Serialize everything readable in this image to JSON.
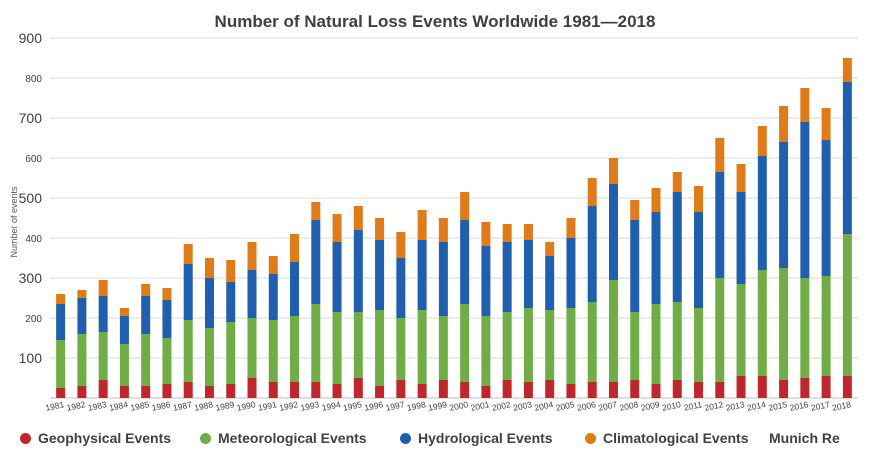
{
  "chart_data": {
    "type": "bar",
    "stacked": true,
    "title": "Number of Natural Loss Events Worldwide 1981—2018",
    "xlabel": "",
    "ylabel": "Number of events",
    "ylim": [
      0,
      900
    ],
    "yticks": [
      {
        "value": 100,
        "label": "100"
      },
      {
        "value": 200,
        "label": "200"
      },
      {
        "value": 300,
        "label": "300"
      },
      {
        "value": 400,
        "label": "400"
      },
      {
        "value": 500,
        "label": "500"
      },
      {
        "value": 600,
        "label": "600"
      },
      {
        "value": 700,
        "label": "700"
      },
      {
        "value": 800,
        "label": "800"
      },
      {
        "value": 900,
        "label": "900"
      }
    ],
    "grid": true,
    "legend_position": "bottom",
    "source": "Munich Re",
    "categories": [
      "1981",
      "1982",
      "1983",
      "1984",
      "1985",
      "1986",
      "1987",
      "1988",
      "1989",
      "1990",
      "1991",
      "1992",
      "1993",
      "1994",
      "1995",
      "1996",
      "1997",
      "1998",
      "1999",
      "2000",
      "2001",
      "2002",
      "2003",
      "2004",
      "2005",
      "2006",
      "2007",
      "2008",
      "2009",
      "2010",
      "2011",
      "2012",
      "2013",
      "2014",
      "2015",
      "2016",
      "2017",
      "2018"
    ],
    "series": [
      {
        "name": "Geophysical Events",
        "color": "#c0272d",
        "values": [
          25,
          30,
          45,
          30,
          30,
          35,
          40,
          30,
          35,
          50,
          40,
          40,
          40,
          35,
          50,
          30,
          45,
          35,
          45,
          40,
          30,
          45,
          40,
          45,
          35,
          40,
          40,
          45,
          35,
          45,
          40,
          40,
          55,
          55,
          45,
          50,
          55,
          55
        ]
      },
      {
        "name": "Meteorological Events",
        "color": "#70ad47",
        "values": [
          120,
          130,
          120,
          105,
          130,
          115,
          155,
          145,
          155,
          150,
          155,
          165,
          195,
          180,
          165,
          190,
          155,
          185,
          160,
          195,
          175,
          170,
          185,
          175,
          190,
          200,
          255,
          170,
          200,
          195,
          185,
          260,
          230,
          265,
          280,
          250,
          250,
          355
        ]
      },
      {
        "name": "Hydrological Events",
        "color": "#1f5fae",
        "values": [
          90,
          90,
          90,
          70,
          95,
          95,
          140,
          125,
          100,
          120,
          115,
          135,
          210,
          175,
          205,
          175,
          150,
          175,
          185,
          210,
          175,
          175,
          170,
          135,
          175,
          240,
          240,
          230,
          230,
          275,
          240,
          265,
          230,
          285,
          315,
          390,
          340,
          380
        ]
      },
      {
        "name": "Climatological Events",
        "color": "#e07b1a",
        "values": [
          25,
          20,
          40,
          20,
          30,
          30,
          50,
          50,
          55,
          70,
          45,
          70,
          45,
          70,
          60,
          55,
          65,
          75,
          60,
          70,
          60,
          45,
          40,
          35,
          50,
          70,
          65,
          50,
          60,
          50,
          65,
          85,
          70,
          75,
          90,
          85,
          80,
          60
        ]
      }
    ]
  }
}
